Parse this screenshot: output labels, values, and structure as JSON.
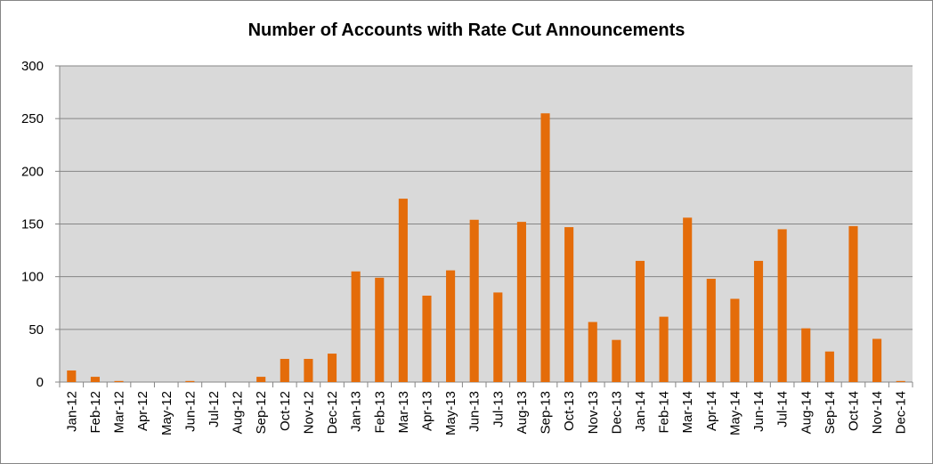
{
  "chart_data": {
    "type": "bar",
    "title": "Number of Accounts with Rate Cut Announcements",
    "xlabel": "",
    "ylabel": "",
    "ylim": [
      0,
      300
    ],
    "yticks": [
      "0",
      "50",
      "100",
      "150",
      "200",
      "250",
      "300"
    ],
    "grid": true,
    "legend": "none",
    "categories": [
      "Jan-12",
      "Feb-12",
      "Mar-12",
      "Apr-12",
      "May-12",
      "Jun-12",
      "Jul-12",
      "Aug-12",
      "Sep-12",
      "Oct-12",
      "Nov-12",
      "Dec-12",
      "Jan-13",
      "Feb-13",
      "Mar-13",
      "Apr-13",
      "May-13",
      "Jun-13",
      "Jul-13",
      "Aug-13",
      "Sep-13",
      "Oct-13",
      "Nov-13",
      "Dec-13",
      "Jan-14",
      "Feb-14",
      "Mar-14",
      "Apr-14",
      "May-14",
      "Jun-14",
      "Jul-14",
      "Aug-14",
      "Sep-14",
      "Oct-14",
      "Nov-14",
      "Dec-14"
    ],
    "values": [
      11,
      5,
      1,
      0,
      0,
      1,
      0,
      0,
      5,
      22,
      22,
      27,
      105,
      99,
      174,
      82,
      106,
      154,
      85,
      152,
      255,
      147,
      57,
      40,
      115,
      62,
      156,
      98,
      79,
      115,
      145,
      51,
      29,
      148,
      41,
      1
    ],
    "colors": {
      "bar": "#E46C0A",
      "plot_background": "#D9D9D9",
      "gridline": "#868686",
      "frame": "#868686"
    }
  }
}
